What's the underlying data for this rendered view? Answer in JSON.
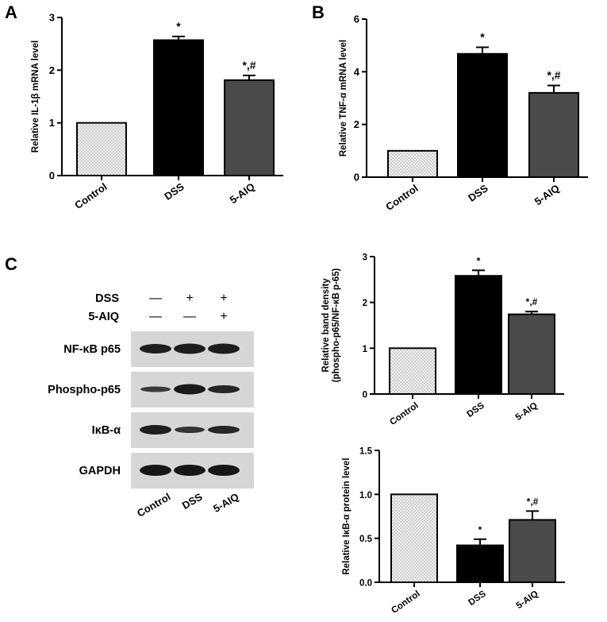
{
  "panel_letters": {
    "a": "A",
    "b": "B",
    "c": "C"
  },
  "colors": {
    "control_fill": "#f4f4f4",
    "dss_fill": "#000000",
    "aiq_fill": "#4a4a4a",
    "axis": "#000000"
  },
  "blot": {
    "treatments": [
      {
        "name": "DSS",
        "signs": [
          "—",
          "+",
          "+"
        ]
      },
      {
        "name": "5-AIQ",
        "signs": [
          "—",
          "—",
          "+"
        ]
      }
    ],
    "bands": [
      "NF-κB p65",
      "Phospho-p65",
      "IκB-α",
      "GAPDH"
    ],
    "lanes": [
      "Control",
      "DSS",
      "5-AIQ"
    ]
  },
  "chart_data": [
    {
      "type": "bar",
      "panel": "A",
      "categories": [
        "Control",
        "DSS",
        "5-AIQ"
      ],
      "values": [
        1.0,
        2.57,
        1.81
      ],
      "errors": [
        0,
        0.07,
        0.09
      ],
      "annotations": [
        "",
        "*",
        "*,#"
      ],
      "ylabel": "Relative IL-1β mRNA level",
      "ylim": [
        0,
        3
      ],
      "yticks": [
        "0",
        "1",
        "2",
        "3"
      ],
      "grid": false
    },
    {
      "type": "bar",
      "panel": "B",
      "categories": [
        "Control",
        "DSS",
        "5-AIQ"
      ],
      "values": [
        1.0,
        4.68,
        3.2
      ],
      "errors": [
        0,
        0.25,
        0.28
      ],
      "annotations": [
        "",
        "*",
        "*,#"
      ],
      "ylabel": "Relative TNF-α mRNA level",
      "ylim": [
        0,
        6
      ],
      "yticks": [
        "0",
        "2",
        "4",
        "6"
      ],
      "grid": false
    },
    {
      "type": "bar",
      "panel": "C",
      "categories": [
        "Control",
        "DSS",
        "5-AIQ"
      ],
      "values": [
        1.0,
        2.58,
        1.74
      ],
      "errors": [
        0,
        0.12,
        0.06
      ],
      "annotations": [
        "",
        "*",
        "*,#"
      ],
      "ylabel": "Relative band density",
      "ylabel2": "(phospho-p65/NF-κB p-65)",
      "ylim": [
        0,
        3
      ],
      "yticks": [
        "0",
        "1",
        "2",
        "3"
      ],
      "grid": false
    },
    {
      "type": "bar",
      "panel": "C",
      "categories": [
        "Control",
        "DSS",
        "5-AIQ"
      ],
      "values": [
        1.0,
        0.42,
        0.71
      ],
      "errors": [
        0,
        0.07,
        0.1
      ],
      "annotations": [
        "",
        "*",
        "*,#"
      ],
      "ylabel": "Relative IκB-α protein level",
      "ylim": [
        0,
        1.5
      ],
      "yticks": [
        "0.0",
        "0.5",
        "1.0",
        "1.5"
      ],
      "grid": false
    }
  ]
}
